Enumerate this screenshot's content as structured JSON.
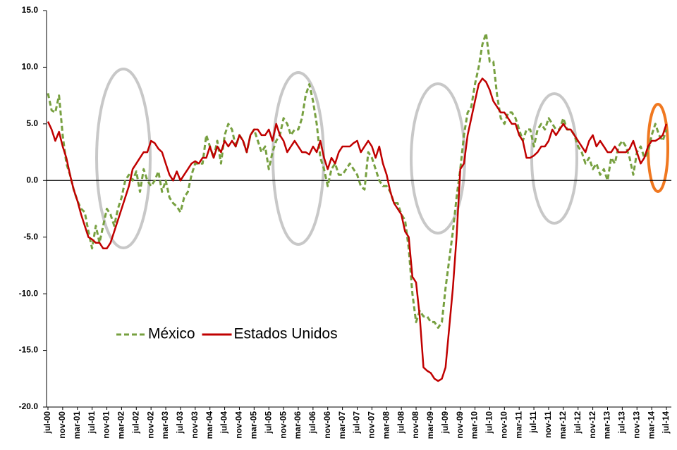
{
  "chart_data": {
    "type": "line",
    "categories": [
      "jul-00",
      null,
      null,
      null,
      "nov-00",
      null,
      null,
      null,
      "mar-01",
      null,
      null,
      null,
      "jul-01",
      null,
      null,
      null,
      "nov-01",
      null,
      null,
      null,
      "mar-02",
      null,
      null,
      null,
      "jul-02",
      null,
      null,
      null,
      "nov-02",
      null,
      null,
      null,
      "mar-03",
      null,
      null,
      null,
      "jul-03",
      null,
      null,
      null,
      "nov-03",
      null,
      null,
      null,
      "mar-04",
      null,
      null,
      null,
      "jul-04",
      null,
      null,
      null,
      "nov-04",
      null,
      null,
      null,
      "mar-05",
      null,
      null,
      null,
      "jul-05",
      null,
      null,
      null,
      "nov-05",
      null,
      null,
      null,
      "mar-06",
      null,
      null,
      null,
      "jul-06",
      null,
      null,
      null,
      "nov-06",
      null,
      null,
      null,
      "mar-07",
      null,
      null,
      null,
      "jul-07",
      null,
      null,
      null,
      "nov-07",
      null,
      null,
      null,
      "mar-08",
      null,
      null,
      null,
      "jul-08",
      null,
      null,
      null,
      "nov-08",
      null,
      null,
      null,
      "mar-09",
      null,
      null,
      null,
      "jul-09",
      null,
      null,
      null,
      "nov-09",
      null,
      null,
      null,
      "mar-10",
      null,
      null,
      null,
      "jul-10",
      null,
      null,
      null,
      "nov-10",
      null,
      null,
      null,
      "mar-11",
      null,
      null,
      null,
      "jul-11",
      null,
      null,
      null,
      "nov-11",
      null,
      null,
      null,
      "mar-12",
      null,
      null,
      null,
      "jul-12",
      null,
      null,
      null,
      "nov-12",
      null,
      null,
      null,
      "mar-13",
      null,
      null,
      null,
      "jul-13",
      null,
      null,
      null,
      "nov-13",
      null,
      null,
      null,
      "mar-14",
      null,
      null,
      null,
      "jul-14"
    ],
    "series": [
      {
        "name": "México",
        "color": "#77a040",
        "dashed": true,
        "values": [
          7.7,
          6.2,
          6.0,
          7.5,
          4.0,
          1.5,
          0.5,
          -0.8,
          -1.8,
          -2.5,
          -2.8,
          -4.5,
          -6.0,
          -4.0,
          -5.5,
          -4.0,
          -2.5,
          -3.0,
          -4.0,
          -2.5,
          -1.5,
          0.0,
          0.5,
          0.0,
          0.8,
          -1.0,
          1.0,
          0.0,
          -0.5,
          0.0,
          0.8,
          -1.0,
          0.0,
          -1.5,
          -2.0,
          -2.3,
          -2.8,
          -1.5,
          -1.0,
          0.5,
          1.5,
          1.5,
          1.5,
          4.0,
          3.0,
          2.0,
          3.5,
          1.5,
          4.0,
          5.0,
          4.5,
          3.0,
          4.0,
          3.5,
          2.5,
          4.0,
          4.5,
          3.5,
          2.5,
          3.0,
          1.0,
          2.5,
          3.5,
          4.0,
          5.5,
          5.0,
          4.0,
          4.5,
          4.5,
          5.5,
          7.5,
          8.5,
          7.0,
          5.0,
          2.0,
          1.0,
          -0.5,
          1.0,
          1.5,
          0.5,
          0.5,
          1.0,
          1.5,
          1.0,
          0.5,
          -0.5,
          -0.8,
          2.5,
          2.0,
          1.0,
          0.0,
          -0.5,
          -0.5,
          -1.0,
          -2.0,
          -2.0,
          -3.0,
          -3.5,
          -6.0,
          -10.0,
          -12.5,
          -11.5,
          -12.0,
          -12.0,
          -12.5,
          -12.5,
          -13.0,
          -12.5,
          -9.5,
          -7.0,
          -4.5,
          -1.5,
          1.0,
          4.0,
          6.0,
          6.5,
          8.5,
          10.0,
          12.0,
          13.0,
          10.5,
          10.5,
          7.5,
          5.5,
          5.0,
          6.0,
          6.0,
          5.5,
          4.5,
          3.5,
          4.5,
          4.5,
          3.0,
          4.5,
          5.0,
          4.5,
          5.5,
          5.0,
          4.5,
          4.5,
          5.5,
          4.5,
          4.5,
          4.0,
          3.0,
          2.5,
          1.5,
          2.0,
          1.0,
          1.5,
          0.5,
          1.0,
          0.0,
          2.0,
          1.5,
          3.0,
          3.5,
          3.0,
          2.0,
          0.5,
          2.5,
          3.0,
          2.0,
          2.5,
          4.0,
          5.0,
          4.0,
          3.5,
          4.5
        ]
      },
      {
        "name": "Estados Unidos",
        "color": "#c00000",
        "dashed": false,
        "values": [
          5.2,
          4.5,
          3.5,
          4.3,
          3.0,
          2.0,
          0.5,
          -0.8,
          -1.8,
          -3.0,
          -4.0,
          -5.0,
          -5.2,
          -5.5,
          -5.5,
          -6.0,
          -6.0,
          -5.5,
          -4.5,
          -3.5,
          -2.5,
          -1.5,
          -0.5,
          1.0,
          1.5,
          2.0,
          2.5,
          2.5,
          3.5,
          3.3,
          2.8,
          2.5,
          1.5,
          0.5,
          0.0,
          0.8,
          0.0,
          0.5,
          1.0,
          1.5,
          1.7,
          1.5,
          2.0,
          2.0,
          3.0,
          2.0,
          3.0,
          2.5,
          3.5,
          3.0,
          3.5,
          3.0,
          4.0,
          3.5,
          2.5,
          4.0,
          4.5,
          4.5,
          4.0,
          4.0,
          4.5,
          3.5,
          5.0,
          4.0,
          3.5,
          2.5,
          3.0,
          3.5,
          3.0,
          2.5,
          2.5,
          2.3,
          3.0,
          2.5,
          3.5,
          2.0,
          1.0,
          2.0,
          1.5,
          2.5,
          3.0,
          3.0,
          3.0,
          3.3,
          3.5,
          2.5,
          3.0,
          3.5,
          3.0,
          2.0,
          3.0,
          1.5,
          0.5,
          -1.0,
          -2.0,
          -2.5,
          -3.0,
          -4.5,
          -5.0,
          -8.5,
          -9.0,
          -12.0,
          -16.5,
          -16.8,
          -17.0,
          -17.5,
          -17.7,
          -17.5,
          -16.5,
          -13.0,
          -9.5,
          -5.0,
          1.0,
          1.5,
          4.0,
          5.5,
          7.0,
          8.5,
          9.0,
          8.7,
          8.0,
          7.0,
          6.5,
          6.0,
          6.0,
          5.5,
          5.0,
          5.0,
          4.0,
          3.5,
          2.0,
          2.0,
          2.2,
          2.5,
          3.0,
          3.0,
          3.5,
          4.5,
          4.0,
          4.5,
          5.0,
          4.5,
          4.5,
          4.0,
          3.5,
          3.0,
          2.5,
          3.5,
          4.0,
          3.0,
          3.5,
          3.0,
          2.5,
          2.5,
          3.0,
          2.5,
          2.5,
          2.5,
          2.8,
          3.5,
          2.5,
          1.5,
          2.0,
          3.0,
          3.5,
          3.5,
          3.7,
          4.0,
          5.0
        ]
      }
    ],
    "ylim": [
      -20,
      15
    ],
    "yticks": [
      {
        "value": -20,
        "label": "-20.0"
      },
      {
        "value": -15,
        "label": "-15.0"
      },
      {
        "value": -10,
        "label": "-10.0"
      },
      {
        "value": -5,
        "label": "-5.0"
      },
      {
        "value": 0,
        "label": "0.0"
      },
      {
        "value": 5,
        "label": "5.0"
      },
      {
        "value": 10,
        "label": "10.0"
      },
      {
        "value": 15,
        "label": "15.0"
      }
    ],
    "grid": false,
    "legend": "lower left"
  }
}
